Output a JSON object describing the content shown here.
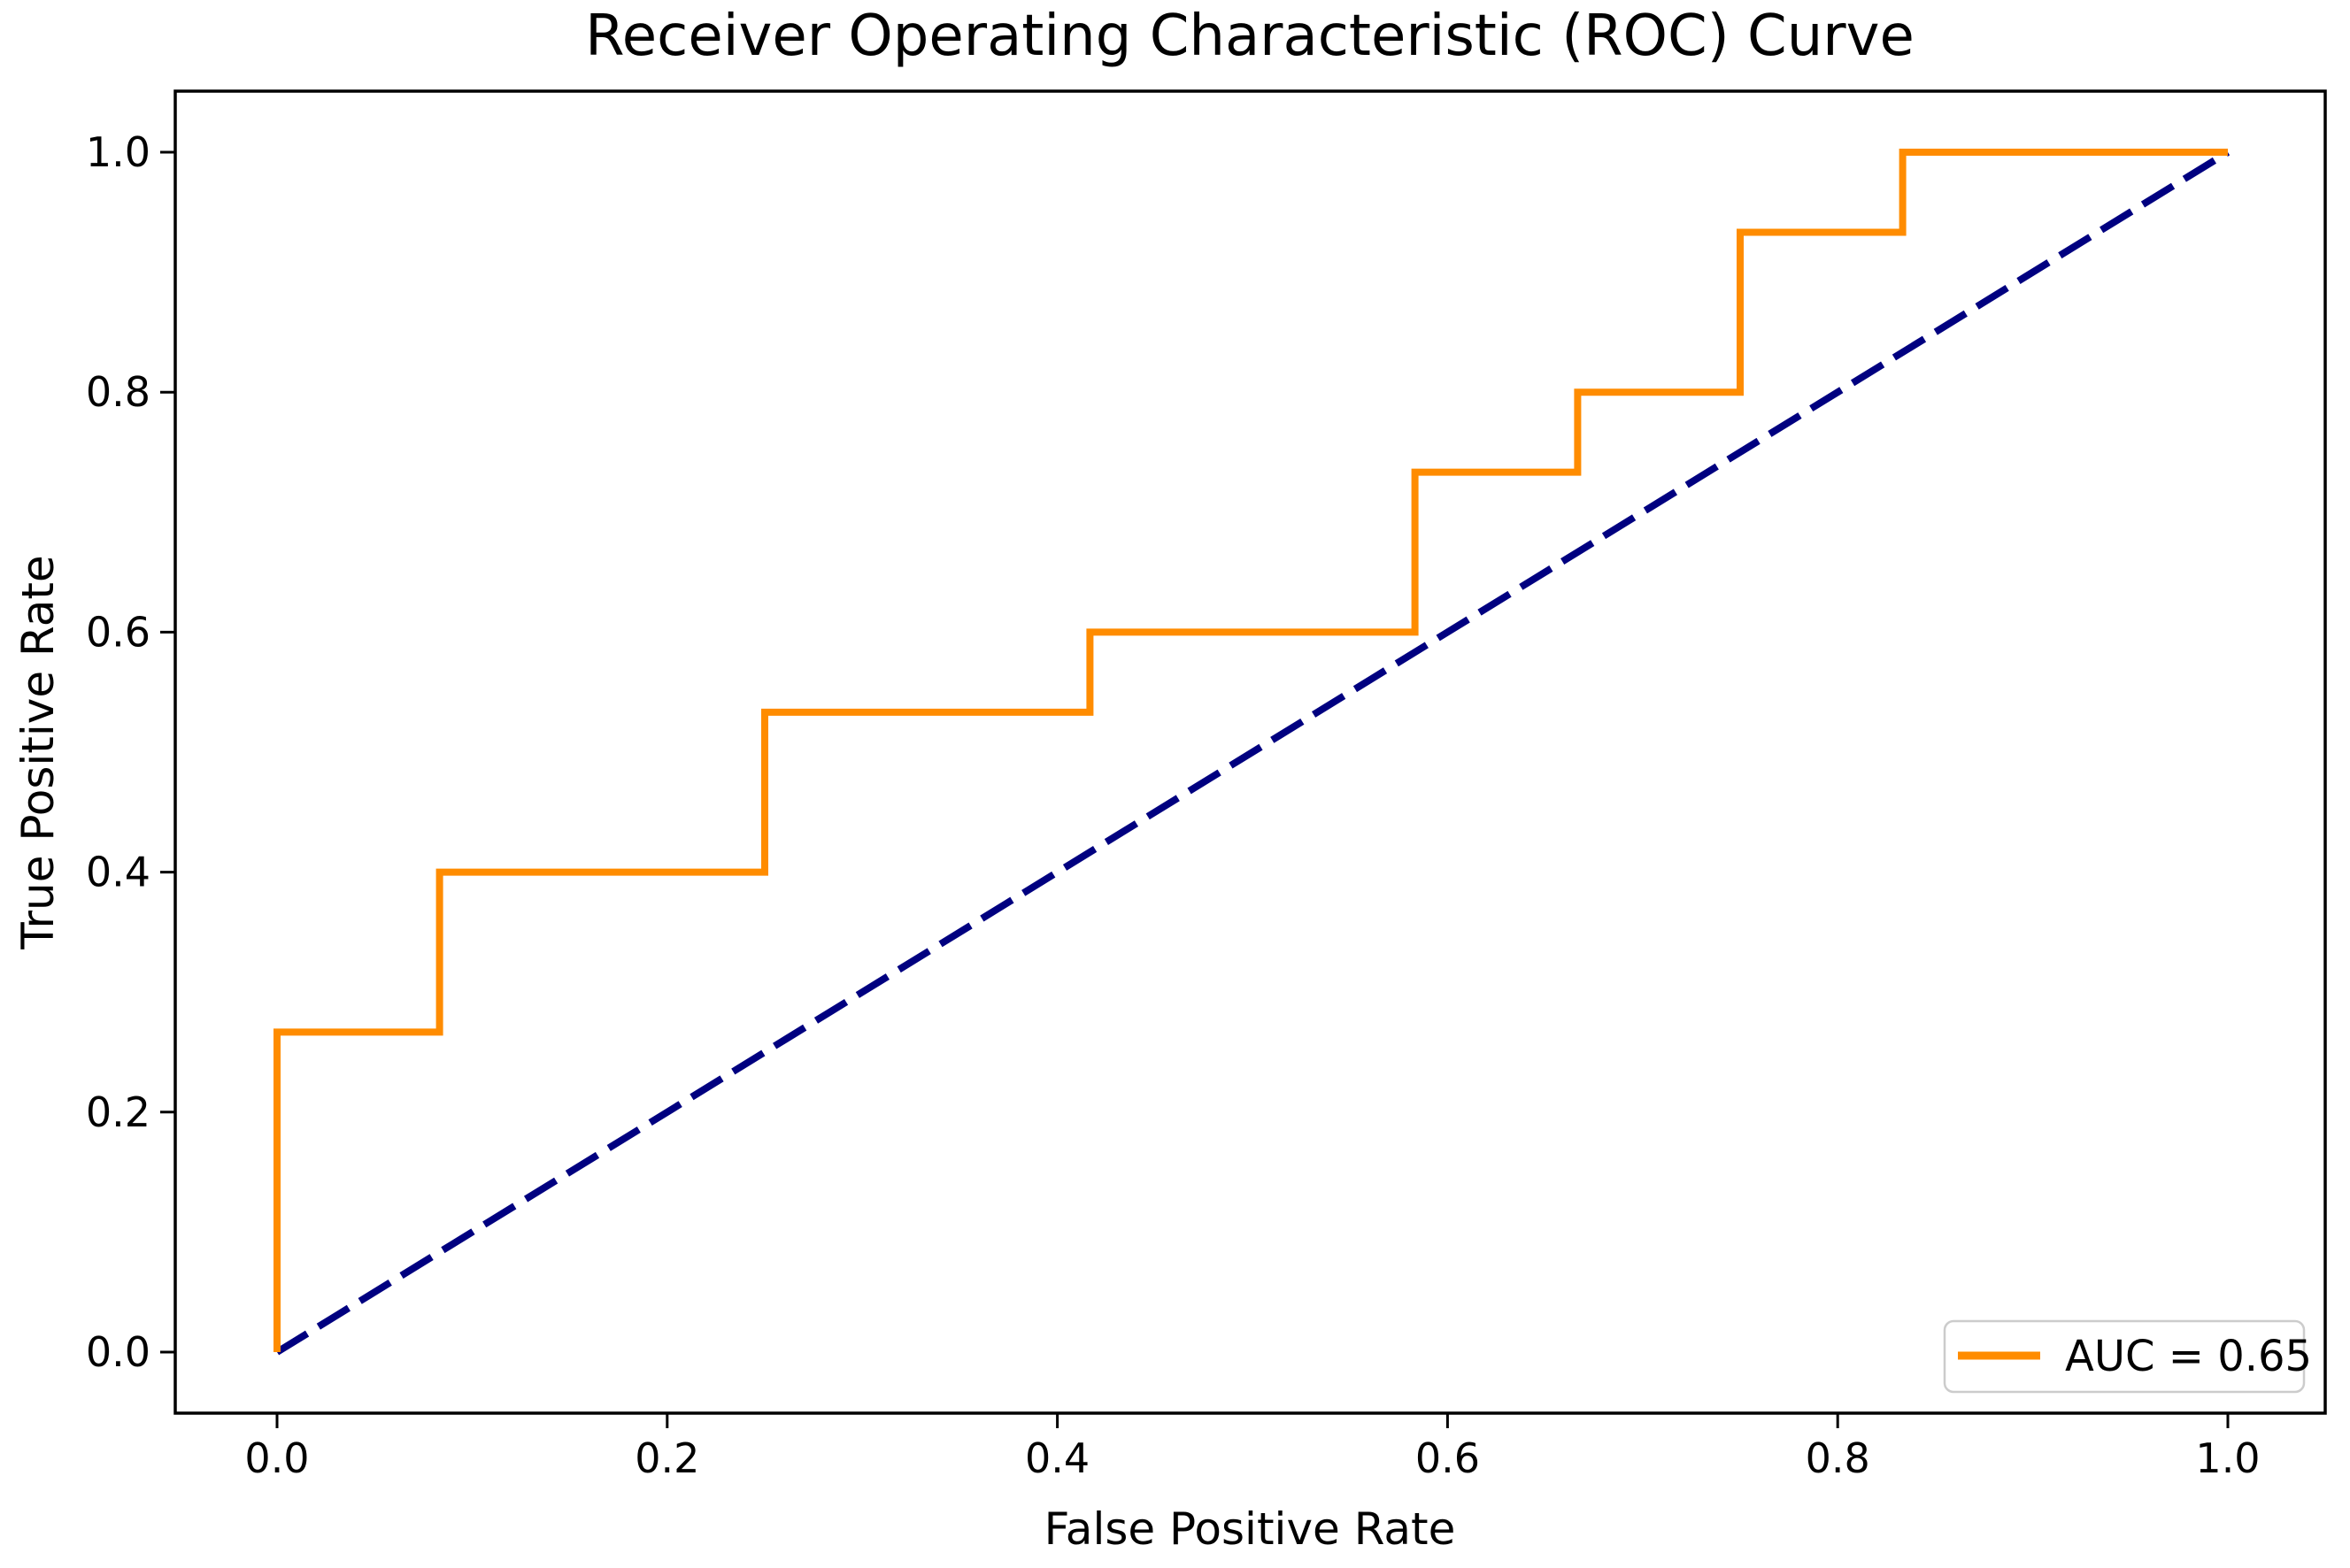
{
  "chart_data": {
    "type": "line",
    "title": "Receiver Operating Characteristic (ROC) Curve",
    "xlabel": "False Positive Rate",
    "ylabel": "True Positive Rate",
    "x_tick_labels": [
      "0.0",
      "0.2",
      "0.4",
      "0.6",
      "0.8",
      "1.0"
    ],
    "y_tick_labels": [
      "0.0",
      "0.2",
      "0.4",
      "0.6",
      "0.8",
      "1.0"
    ],
    "xlim": [
      -0.05,
      1.05
    ],
    "ylim": [
      -0.05,
      1.05
    ],
    "grid": false,
    "legend_position": "lower right",
    "auc": 0.65,
    "colors": {
      "roc_curve": "#ff8c00",
      "chance_line": "#000080",
      "axes": "#000000",
      "legend_border": "#cccccc"
    },
    "series": [
      {
        "name": "roc-curve",
        "label": "AUC = 0.65",
        "color": "#ff8c00",
        "line_style": "solid",
        "points": [
          [
            0.0,
            0.0
          ],
          [
            0.0,
            0.2667
          ],
          [
            0.0833,
            0.2667
          ],
          [
            0.0833,
            0.4
          ],
          [
            0.25,
            0.4
          ],
          [
            0.25,
            0.5333
          ],
          [
            0.4167,
            0.5333
          ],
          [
            0.4167,
            0.6
          ],
          [
            0.5833,
            0.6
          ],
          [
            0.5833,
            0.7333
          ],
          [
            0.6667,
            0.7333
          ],
          [
            0.6667,
            0.8
          ],
          [
            0.75,
            0.8
          ],
          [
            0.75,
            0.9333
          ],
          [
            0.8333,
            0.9333
          ],
          [
            0.8333,
            1.0
          ],
          [
            1.0,
            1.0
          ]
        ]
      },
      {
        "name": "chance-diagonal",
        "label": "",
        "color": "#000080",
        "line_style": "dashed",
        "points": [
          [
            0.0,
            0.0
          ],
          [
            1.0,
            1.0
          ]
        ]
      }
    ]
  }
}
